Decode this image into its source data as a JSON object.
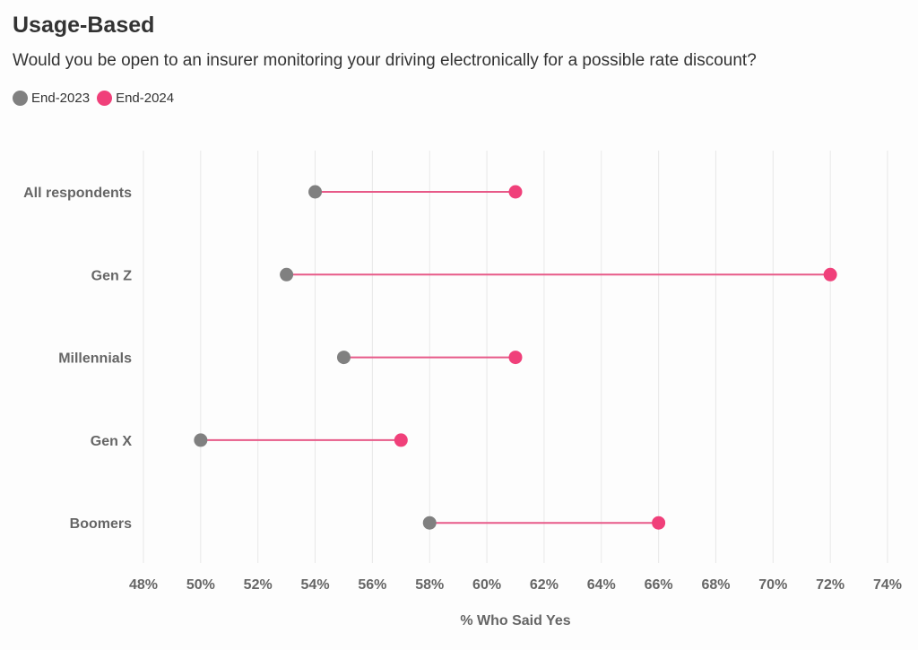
{
  "chart_data": {
    "type": "dumbbell",
    "title": "Usage-Based",
    "subtitle": "Would you be open to an insurer monitoring your driving electronically for a possible rate discount?",
    "xlabel": "% Who Said Yes",
    "xlim": [
      48,
      74
    ],
    "x_ticks": [
      "48%",
      "50%",
      "52%",
      "54%",
      "56%",
      "58%",
      "60%",
      "62%",
      "64%",
      "66%",
      "68%",
      "70%",
      "72%",
      "74%"
    ],
    "grid": true,
    "legend_placement": "top-left",
    "categories": [
      "All respondents",
      "Gen Z",
      "Millennials",
      "Gen X",
      "Boomers"
    ],
    "series": [
      {
        "name": "End-2023",
        "color": "#808080",
        "values": [
          54,
          53,
          55,
          50,
          58
        ]
      },
      {
        "name": "End-2024",
        "color": "#f0407a",
        "values": [
          61,
          72,
          61,
          57,
          66
        ]
      }
    ],
    "connector_color": "#e75a88"
  }
}
